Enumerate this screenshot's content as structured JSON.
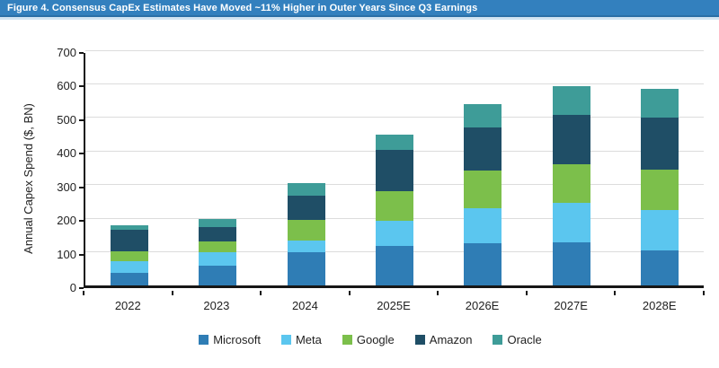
{
  "title_bar": {
    "text": "Figure 4. Consensus CapEx Estimates Have Moved ~11% Higher in Outer Years Since Q3 Earnings",
    "background_color": "#3380be",
    "text_color": "#ffffff"
  },
  "chart_data": {
    "type": "bar",
    "stacked": true,
    "title": "Figure 4. Consensus CapEx Estimates Have Moved ~11% Higher in Outer Years Since Q3 Earnings",
    "xlabel": "",
    "ylabel": "Annual Capex Spend ($, BN)",
    "ylim": [
      0,
      700
    ],
    "yticks": [
      0,
      100,
      200,
      300,
      400,
      500,
      600,
      700
    ],
    "grid": true,
    "legend_position": "bottom",
    "categories": [
      "2022",
      "2023",
      "2024",
      "2025E",
      "2026E",
      "2027E",
      "2028E"
    ],
    "series": [
      {
        "name": "Microsoft",
        "color": "#2f7db5",
        "values": [
          37,
          58,
          98,
          118,
          125,
          128,
          104
        ]
      },
      {
        "name": "Meta",
        "color": "#5bc6ef",
        "values": [
          35,
          40,
          36,
          74,
          105,
          118,
          120
        ]
      },
      {
        "name": "Google",
        "color": "#7cbf4b",
        "values": [
          30,
          32,
          62,
          89,
          112,
          116,
          120
        ]
      },
      {
        "name": "Amazon",
        "color": "#1f4e66",
        "values": [
          65,
          45,
          71,
          123,
          129,
          147,
          156
        ]
      },
      {
        "name": "Oracle",
        "color": "#3e9c98",
        "values": [
          12,
          24,
          38,
          46,
          70,
          85,
          85
        ]
      }
    ],
    "totals": [
      179,
      199,
      305,
      450,
      541,
      594,
      585
    ]
  },
  "colors": {
    "axis": "#161616",
    "gridline": "#dcdcdc",
    "text": "#1f1f1f",
    "background": "#ffffff"
  }
}
